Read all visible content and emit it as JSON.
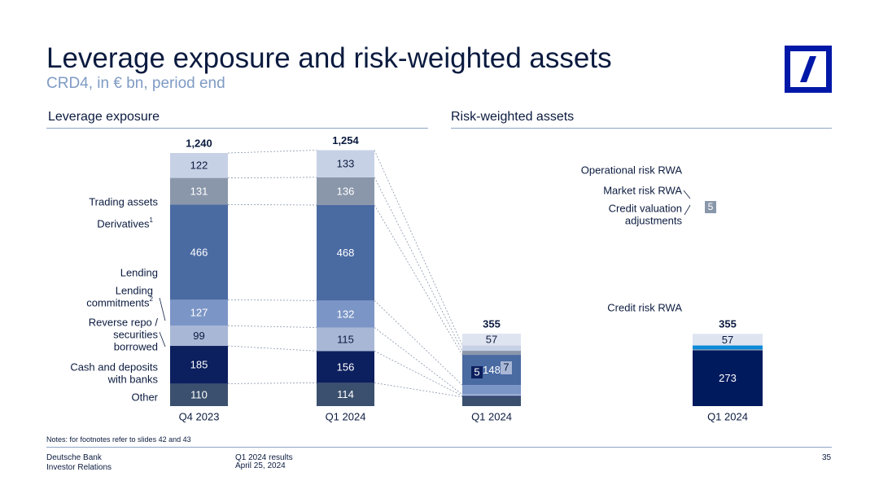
{
  "header": {
    "title": "Leverage exposure and risk-weighted assets",
    "subtitle": "CRD4, in € bn, period end"
  },
  "sections": {
    "leverage": "Leverage exposure",
    "rwa": "Risk-weighted assets"
  },
  "logo": {
    "name": "deutsche-bank-logo",
    "color": "#0018a8"
  },
  "notes": "Notes: for footnotes refer to slides 42 and 43",
  "footer": {
    "company": "Deutsche Bank",
    "department": "Investor Relations",
    "report": "Q1 2024 results",
    "date": "April 25, 2024",
    "page": "35"
  },
  "chart_data": [
    {
      "type": "bar",
      "stacked": true,
      "title": "Leverage exposure",
      "categories": [
        "Q4 2023",
        "Q1 2024"
      ],
      "totals": [
        "1,240",
        "1,254"
      ],
      "series": [
        {
          "name": "Other",
          "values": [
            110,
            114
          ],
          "color": "#3b506e",
          "text": "#ffffff"
        },
        {
          "name": "Cash and deposits with banks",
          "values": [
            185,
            156
          ],
          "color": "#0c1f5e",
          "text": "#ffffff"
        },
        {
          "name": "Reverse repo / securities borrowed",
          "values": [
            99,
            115
          ],
          "color": "#a9b7d6",
          "text": "#0b1b3f"
        },
        {
          "name": "Lending commitments",
          "superscript": "2",
          "values": [
            127,
            132
          ],
          "color": "#7b95c6",
          "text": "#ffffff"
        },
        {
          "name": "Lending",
          "values": [
            466,
            468
          ],
          "color": "#4a6aa2",
          "text": "#ffffff"
        },
        {
          "name": "Derivatives",
          "superscript": "1",
          "values": [
            131,
            136
          ],
          "color": "#8a97ab",
          "text": "#ffffff"
        },
        {
          "name": "Trading assets",
          "values": [
            122,
            133
          ],
          "color": "#c7d1e6",
          "text": "#0b1b3f"
        }
      ]
    },
    {
      "type": "bar",
      "stacked": true,
      "title": "Risk-weighted assets",
      "categories": [
        "Q1 2024"
      ],
      "totals": [
        "355"
      ],
      "series": [
        {
          "name": "Other",
          "values": [
            45
          ],
          "color": "#3b506e",
          "text": "#ffffff"
        },
        {
          "name": "Cash and deposits with banks",
          "values": [
            5
          ],
          "color": "#0c1f5e",
          "text": "#ffffff"
        },
        {
          "name": "Reverse repo / securities borrowed",
          "values": [
            7
          ],
          "color": "#a9b7d6",
          "text": "#0b1b3f"
        },
        {
          "name": "Lending commitments",
          "values": [
            46
          ],
          "color": "#7b95c6",
          "text": "#ffffff"
        },
        {
          "name": "Lending",
          "values": [
            148
          ],
          "color": "#4a6aa2",
          "text": "#ffffff"
        },
        {
          "name": "Derivatives",
          "values": [
            20
          ],
          "color": "#8a97ab",
          "text": "#ffffff"
        },
        {
          "name": "Trading assets",
          "values": [
            27
          ],
          "color": "#c7d1e6",
          "text": "#0b1b3f"
        },
        {
          "name": "Operational risk RWA",
          "values": [
            57
          ],
          "color": "#dfe4f1",
          "text": "#0b1b3f"
        }
      ]
    },
    {
      "type": "bar",
      "stacked": true,
      "title": "Risk-weighted assets",
      "categories": [
        "Q1 2024"
      ],
      "totals": [
        "355"
      ],
      "series": [
        {
          "name": "Credit risk RWA",
          "values": [
            273
          ],
          "color": "#001a5e",
          "text": "#ffffff"
        },
        {
          "name": "Credit valuation adjustments",
          "values": [
            5
          ],
          "color": "#8a97ab",
          "text": "#ffffff"
        },
        {
          "name": "Market risk RWA",
          "values": [
            19
          ],
          "color": "#0a8ad8",
          "text": "#ffffff"
        },
        {
          "name": "Operational risk RWA",
          "values": [
            57
          ],
          "color": "#dfe4f1",
          "text": "#0b1b3f"
        }
      ]
    }
  ]
}
